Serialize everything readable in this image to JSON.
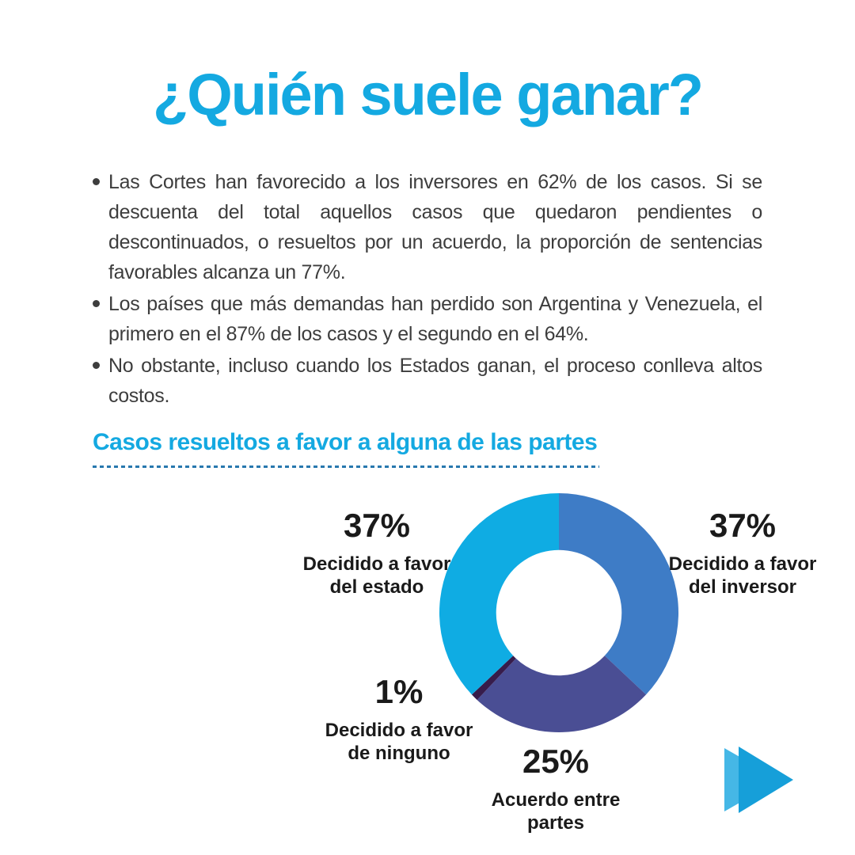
{
  "header": {
    "title": "¿Quién suele ganar?"
  },
  "bullets": [
    "Las Cortes han favorecido a los inversores en 62% de los casos. Si se descuenta del total aquellos casos que quedaron pendientes o descontinuados, o resueltos por un acuerdo, la proporción de sentencias favorables alcanza un 77%.",
    "Los países que más demandas han perdido son Argentina y Venezuela, el primero en el 87% de los casos y el segundo en el 64%.",
    "No obstante, incluso cuando los Estados ganan, el proceso conlleva altos costos."
  ],
  "section": {
    "subtitle": "Casos resueltos a favor a alguna de las partes"
  },
  "chart_data": {
    "type": "pie",
    "variant": "donut",
    "title": "Casos resueltos a favor a alguna de las partes",
    "units": "%",
    "direction": "clockwise",
    "start_angle_deg": 0,
    "inner_radius_ratio": 0.525,
    "segments": [
      {
        "id": "inversor",
        "label": "Decidido a favor del inversor",
        "value": 37,
        "pct_label": "37%",
        "name_line1": "Decidido a favor",
        "name_line2": "del inversor",
        "color": "#3E7CC6"
      },
      {
        "id": "acuerdo",
        "label": "Acuerdo entre partes",
        "value": 25,
        "pct_label": "25%",
        "name_line1": "Acuerdo entre",
        "name_line2": "partes",
        "color": "#4A4E94"
      },
      {
        "id": "ninguno",
        "label": "Decidido a favor de ninguno",
        "value": 1,
        "pct_label": "1%",
        "name_line1": "Decidido a favor",
        "name_line2": "de ninguno",
        "color": "#371C4B"
      },
      {
        "id": "estado",
        "label": "Decidido a favor del estado",
        "value": 37,
        "pct_label": "37%",
        "name_line1": "Decidido a favor",
        "name_line2": "del estado",
        "color": "#0FACE3"
      }
    ]
  },
  "footer": {
    "arrow": {
      "icon": "fast-forward-icon",
      "back_color": "#45B7E6",
      "front_color": "#169FD9"
    }
  },
  "colors": {
    "accent_cyan": "#14A9E1",
    "body_text": "#3D3D3D",
    "label_text": "#1A1A1A",
    "dashed_line": "#2878AE",
    "background": "#FFFFFF"
  }
}
